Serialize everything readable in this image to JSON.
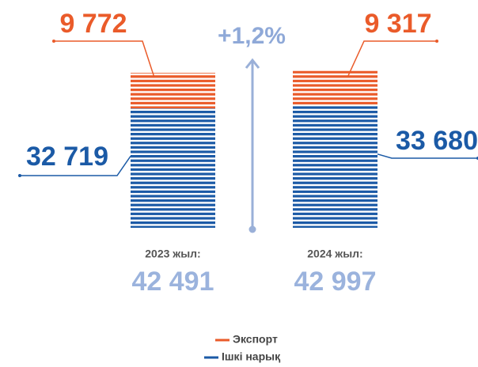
{
  "chart_data": {
    "type": "stacked_bar",
    "categories": [
      "2023 жыл:",
      "2024 жыл:"
    ],
    "series": [
      {
        "name": "Экспорт",
        "color": "#ea5b2a",
        "values": [
          9772,
          9317
        ],
        "value_labels": [
          "9 772",
          "9 317"
        ]
      },
      {
        "name": "Ішкі нарық",
        "color": "#1b5aa6",
        "values": [
          32719,
          33680
        ],
        "value_labels": [
          "32 719",
          "33 680"
        ]
      }
    ],
    "totals": [
      42491,
      42997
    ],
    "total_labels": [
      "42 491",
      "42 997"
    ],
    "annotation": "+1,2%",
    "annotation_color": "#8fa9d8",
    "total_color": "#9bb3dd"
  }
}
